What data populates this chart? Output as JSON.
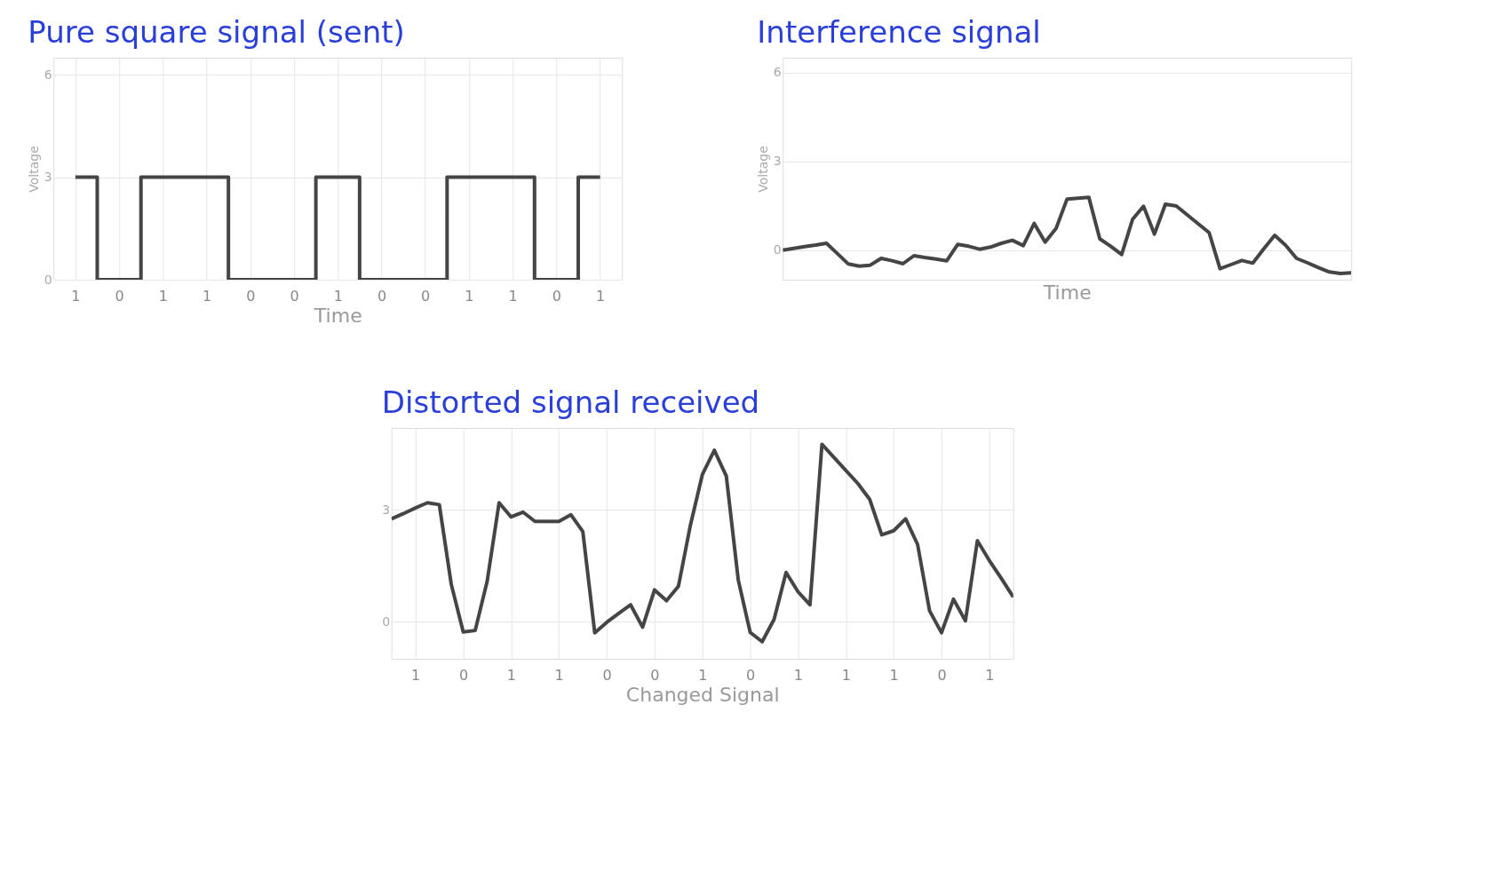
{
  "chart_data": [
    {
      "type": "step",
      "title": "Pure square signal (sent)",
      "xlabel": "Time",
      "ylabel": "Voltage",
      "categories": [
        "1",
        "0",
        "1",
        "1",
        "0",
        "0",
        "1",
        "0",
        "0",
        "1",
        "1",
        "0",
        "1"
      ],
      "series": [
        {
          "color": "#454545",
          "values": [
            3,
            0,
            3,
            3,
            0,
            0,
            3,
            0,
            0,
            3,
            3,
            0,
            3
          ]
        }
      ],
      "ylim": [
        0,
        6.5
      ],
      "yticks": [
        0,
        3,
        6
      ],
      "grid": true
    },
    {
      "type": "line",
      "title": "Interference signal",
      "xlabel": "Time",
      "ylabel": "Voltage",
      "categories": [
        null,
        null,
        null,
        null,
        null,
        null,
        null,
        null,
        null,
        null,
        null,
        null,
        null,
        null,
        null,
        null,
        null,
        null,
        null,
        null,
        null,
        null,
        null,
        null,
        null,
        null,
        null,
        null,
        null,
        null,
        null,
        null,
        null,
        null,
        null,
        null,
        null,
        null,
        null,
        null,
        null,
        null,
        null,
        null,
        null,
        null,
        null,
        null,
        null,
        null,
        null,
        null,
        null
      ],
      "series": [
        {
          "color": "#454545",
          "values": [
            0,
            0.06,
            0.12,
            0.17,
            0.23,
            -0.12,
            -0.47,
            -0.54,
            -0.51,
            -0.28,
            -0.36,
            -0.46,
            -0.19,
            -0.25,
            -0.3,
            -0.36,
            0.19,
            0.13,
            0.03,
            0.1,
            0.23,
            0.33,
            0.15,
            0.9,
            0.27,
            0.73,
            1.72,
            1.75,
            1.78,
            0.38,
            0.13,
            -0.15,
            1.04,
            1.48,
            0.54,
            1.55,
            1.49,
            1.19,
            0.89,
            0.59,
            -0.63,
            -0.49,
            -0.35,
            -0.44,
            0.04,
            0.5,
            0.16,
            -0.28,
            -0.43,
            -0.59,
            -0.74,
            -0.79,
            -0.77
          ]
        }
      ],
      "ylim": [
        -1,
        6.5
      ],
      "yticks": [
        0,
        3,
        6
      ],
      "tick_labels": "y",
      "grid": true
    },
    {
      "type": "line",
      "title": "Distorted signal received",
      "xlabel": "Changed Signal",
      "categories": [
        null,
        null,
        "1",
        null,
        null,
        null,
        "0",
        null,
        null,
        null,
        "1",
        null,
        null,
        null,
        "1",
        null,
        null,
        null,
        "0",
        null,
        null,
        null,
        "0",
        null,
        null,
        null,
        "1",
        null,
        null,
        null,
        "0",
        null,
        null,
        null,
        "1",
        null,
        null,
        null,
        "1",
        null,
        null,
        null,
        "1",
        null,
        null,
        null,
        "0",
        null,
        null,
        null,
        "1",
        null,
        null
      ],
      "series": [
        {
          "color": "#454545",
          "values": [
            2.76,
            2.9,
            3.05,
            3.19,
            3.14,
            1.0,
            -0.28,
            -0.24,
            1.08,
            3.19,
            2.81,
            2.94,
            2.69,
            2.69,
            2.69,
            2.87,
            2.42,
            -0.3,
            -0.02,
            0.22,
            0.45,
            -0.15,
            0.85,
            0.56,
            0.95,
            2.59,
            3.95,
            4.6,
            3.91,
            1.12,
            -0.29,
            -0.54,
            0.06,
            1.32,
            0.8,
            0.45,
            4.76,
            4.41,
            4.06,
            3.71,
            3.28,
            2.33,
            2.44,
            2.76,
            2.07,
            0.29,
            -0.3,
            0.6,
            0.02,
            2.17,
            1.64,
            1.16,
            0.66
          ]
        }
      ],
      "ylim": [
        -1,
        5.2
      ],
      "yticks": [
        0,
        3
      ],
      "grid": true
    }
  ]
}
